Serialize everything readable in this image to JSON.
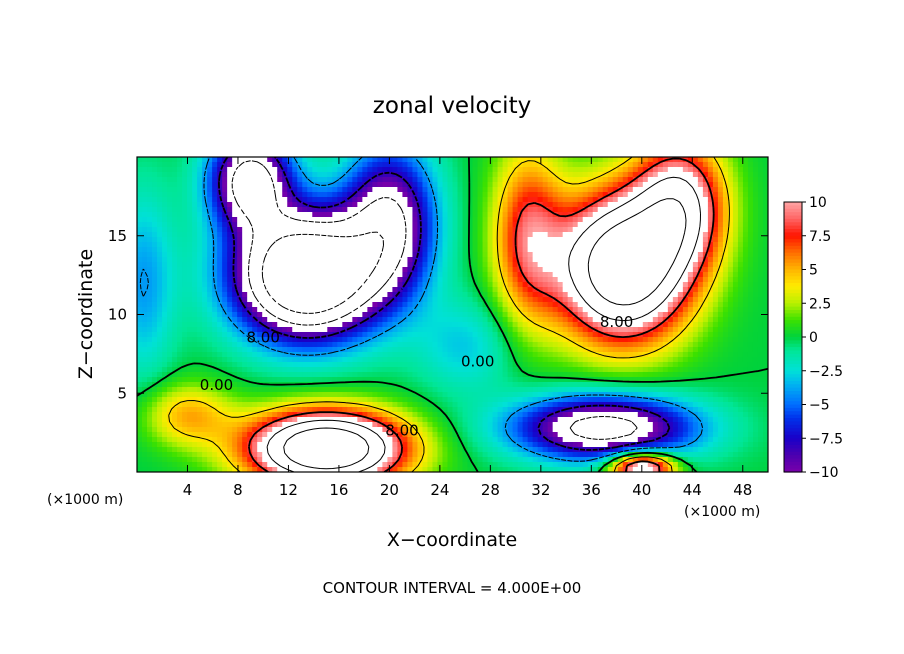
{
  "chart_data": {
    "type": "heatmap",
    "title": "zonal velocity",
    "xlabel": "X−coordinate",
    "ylabel": "Z−coordinate",
    "x_unit_left": "(×1000 m)",
    "x_unit_right": "(×1000 m)",
    "xlim": [
      0,
      50
    ],
    "ylim": [
      0,
      20
    ],
    "x_ticks": [
      4,
      8,
      12,
      16,
      20,
      24,
      28,
      32,
      36,
      40,
      44,
      48
    ],
    "y_ticks": [
      5,
      10,
      15
    ],
    "colorbar": {
      "range": [
        -10,
        10
      ],
      "ticks": [
        10,
        7.5,
        5,
        2.5,
        0,
        -2.5,
        -5,
        -7.5,
        -10
      ],
      "tick_labels": [
        "10",
        "7.5",
        "5",
        "2.5",
        "0",
        "−2.5",
        "−5",
        "−7.5",
        "−10"
      ]
    },
    "contour_labels": [
      {
        "text": "8.00",
        "x": 21,
        "y": 2.6
      },
      {
        "text": "0.00",
        "x": 6.3,
        "y": 5.5
      },
      {
        "text": "8.00",
        "x": 10,
        "y": 8.5
      },
      {
        "text": "0.00",
        "x": 27,
        "y": 7
      },
      {
        "text": "8.00",
        "x": 38,
        "y": 9.5
      }
    ],
    "footer": "CONTOUR INTERVAL = 4.000E+00",
    "field_sources": [
      {
        "x": 13.5,
        "y": 12.5,
        "amp": -24,
        "sx": 5.5,
        "sy": 3.8
      },
      {
        "x": 9,
        "y": 18.5,
        "amp": -14,
        "sx": 3.2,
        "sy": 3.0
      },
      {
        "x": 20,
        "y": 16,
        "amp": -12,
        "sx": 3.5,
        "sy": 4.5
      },
      {
        "x": 38.5,
        "y": 13,
        "amp": 21,
        "sx": 5.0,
        "sy": 4.5
      },
      {
        "x": 43,
        "y": 17,
        "amp": 12,
        "sx": 3.5,
        "sy": 4.0
      },
      {
        "x": 31,
        "y": 15,
        "amp": 8,
        "sx": 2.8,
        "sy": 5.5
      },
      {
        "x": 15,
        "y": 1.5,
        "amp": 22,
        "sx": 6.0,
        "sy": 2.3
      },
      {
        "x": 4,
        "y": 3.6,
        "amp": 5,
        "sx": 3.5,
        "sy": 2.0
      },
      {
        "x": 37,
        "y": 2.8,
        "amp": -14,
        "sx": 7.0,
        "sy": 2.0
      },
      {
        "x": 40,
        "y": 0.3,
        "amp": 14,
        "sx": 2.5,
        "sy": 1.0
      },
      {
        "x": 0.5,
        "y": 12,
        "amp": -4,
        "sx": 2.5,
        "sy": 6.0
      },
      {
        "x": 26,
        "y": 8,
        "amp": -3,
        "sx": 4.0,
        "sy": 3.0
      }
    ]
  }
}
